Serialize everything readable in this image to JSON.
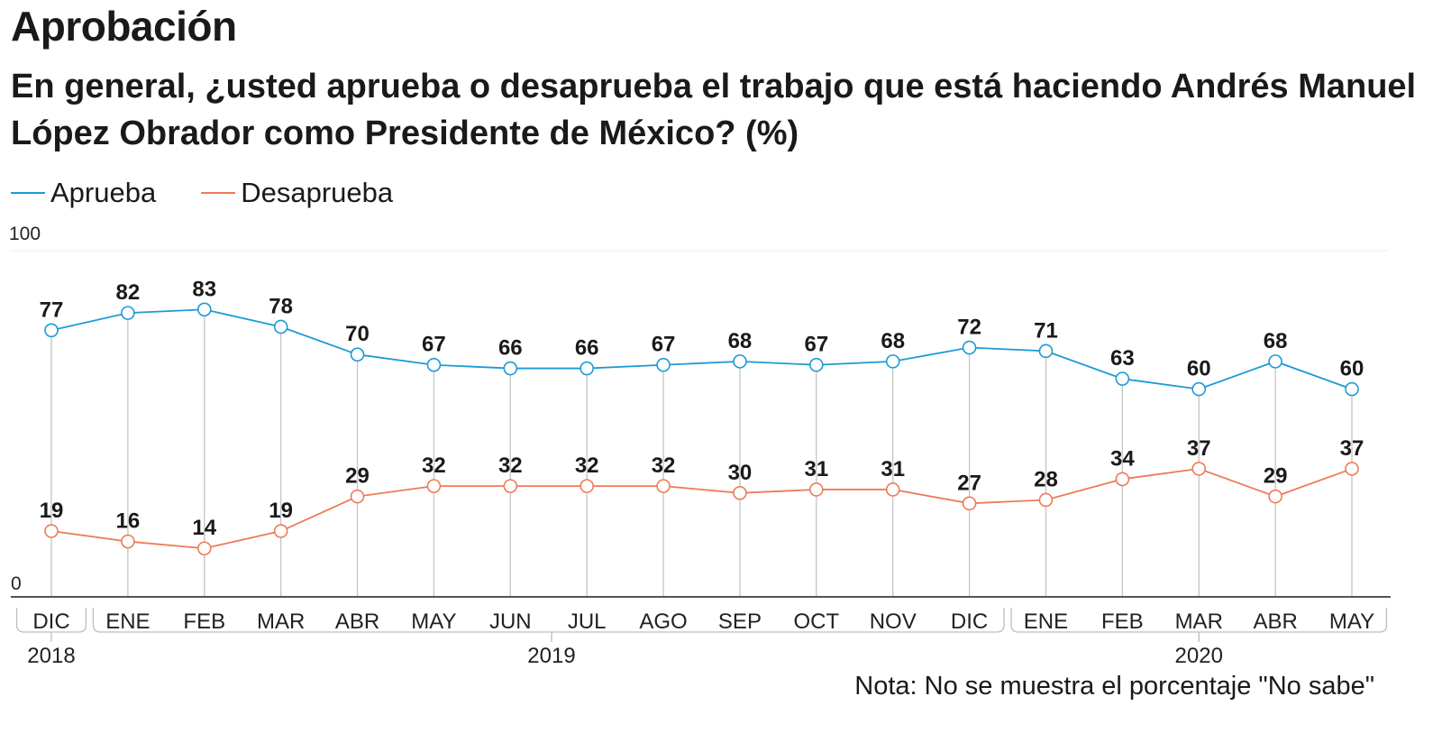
{
  "title": "Aprobación",
  "subtitle": "En general, ¿usted aprueba o desaprueba el trabajo que está haciendo Andrés Manuel López Obrador como Presidente de México?  (%)",
  "note": "Nota: No se muestra el porcentaje \"No sabe\"",
  "colors": {
    "aprueba": "#1d9ad6",
    "desaprueba": "#ee7b57"
  },
  "chart_data": {
    "type": "line",
    "title": "Aprobación",
    "subtitle": "En general, ¿usted aprueba o desaprueba el trabajo que está haciendo Andrés Manuel López Obrador como Presidente de México?  (%)",
    "xlabel": "",
    "ylabel": "",
    "ylim": [
      0,
      100
    ],
    "yticks": [
      "0",
      "100"
    ],
    "grid": false,
    "legend_position": "top-left",
    "categories": [
      "DIC",
      "ENE",
      "FEB",
      "MAR",
      "ABR",
      "MAY",
      "JUN",
      "JUL",
      "AGO",
      "SEP",
      "OCT",
      "NOV",
      "DIC",
      "ENE",
      "FEB",
      "MAR",
      "ABR",
      "MAY"
    ],
    "year_groups": [
      {
        "label": "2018",
        "start": 0,
        "end": 0
      },
      {
        "label": "2019",
        "start": 1,
        "end": 12
      },
      {
        "label": "2020",
        "start": 13,
        "end": 17
      }
    ],
    "series": [
      {
        "name": "Aprueba",
        "key": "aprueba",
        "values": [
          77,
          82,
          83,
          78,
          70,
          67,
          66,
          66,
          67,
          68,
          67,
          68,
          72,
          71,
          63,
          60,
          68,
          60
        ]
      },
      {
        "name": "Desaprueba",
        "key": "desaprueba",
        "values": [
          19,
          16,
          14,
          19,
          29,
          32,
          32,
          32,
          32,
          30,
          31,
          31,
          27,
          28,
          34,
          37,
          29,
          37
        ]
      }
    ]
  }
}
